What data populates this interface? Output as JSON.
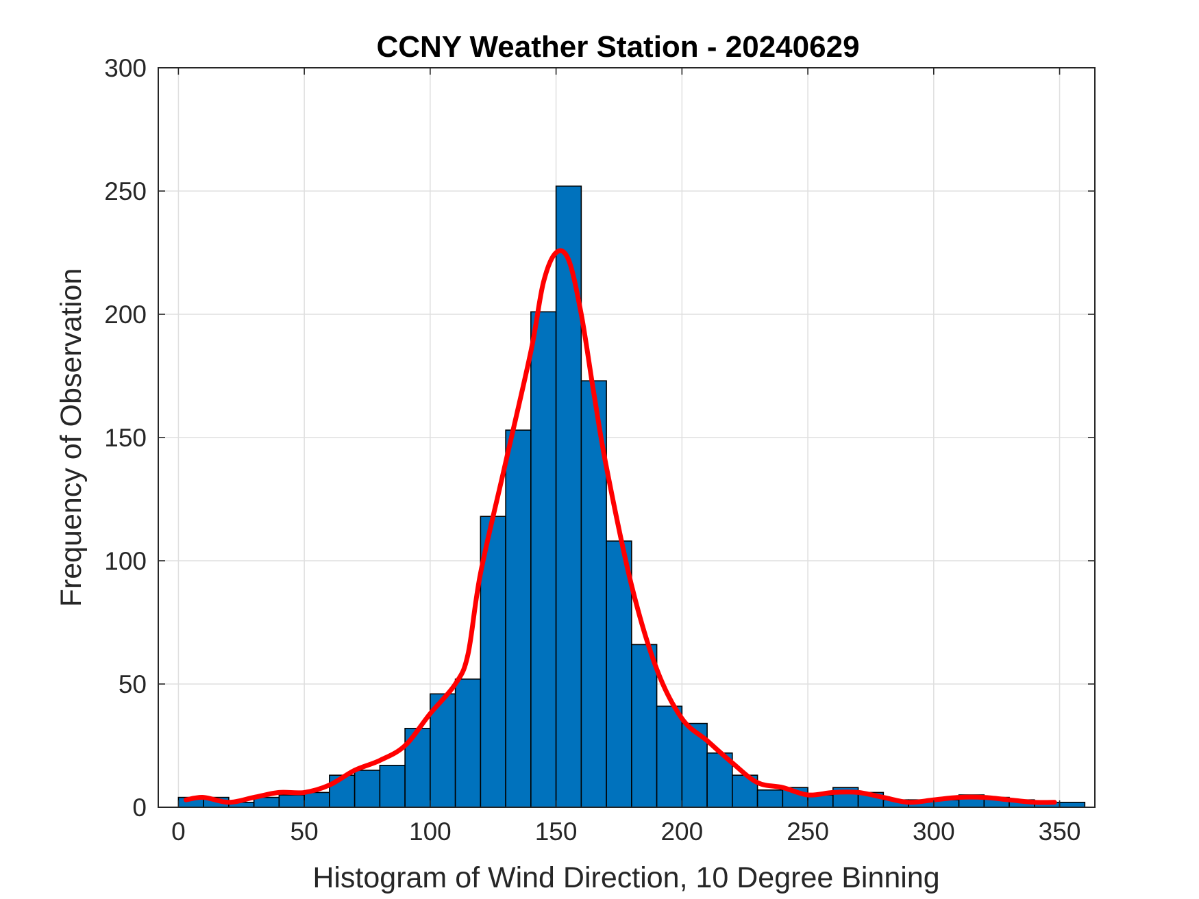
{
  "chart_data": {
    "type": "bar",
    "subtype": "histogram",
    "title": "CCNY Weather Station - 20240629",
    "xlabel": "Histogram of Wind Direction, 10 Degree Binning",
    "ylabel": "Frequency of Observation",
    "xlim": [
      -8,
      364
    ],
    "ylim": [
      0,
      300
    ],
    "x_ticks": [
      0,
      50,
      100,
      150,
      200,
      250,
      300,
      350
    ],
    "y_ticks": [
      0,
      50,
      100,
      150,
      200,
      250,
      300
    ],
    "grid": true,
    "legend": "none",
    "bin_edges": [
      0,
      10,
      20,
      30,
      40,
      50,
      60,
      70,
      80,
      90,
      100,
      110,
      120,
      130,
      140,
      150,
      160,
      170,
      180,
      190,
      200,
      210,
      220,
      230,
      240,
      250,
      260,
      270,
      280,
      290,
      300,
      310,
      320,
      330,
      340,
      350,
      360
    ],
    "series": [
      {
        "type": "bar",
        "values": [
          4,
          4,
          2,
          4,
          5,
          6,
          13,
          15,
          17,
          32,
          46,
          52,
          118,
          153,
          201,
          252,
          173,
          108,
          66,
          41,
          34,
          22,
          13,
          7,
          8,
          5,
          8,
          6,
          3,
          3,
          3,
          5,
          4,
          3,
          2,
          2
        ],
        "color": "#0072bd"
      },
      {
        "type": "line",
        "x": [
          3,
          10,
          20,
          30,
          40,
          50,
          60,
          70,
          80,
          90,
          100,
          110,
          115,
          120,
          130,
          140,
          145,
          150,
          155,
          160,
          165,
          170,
          180,
          190,
          200,
          210,
          220,
          230,
          240,
          250,
          260,
          270,
          280,
          290,
          300,
          310,
          320,
          330,
          340,
          348
        ],
        "y": [
          3,
          4,
          2,
          4,
          6,
          6,
          9,
          15,
          19,
          25,
          38,
          50,
          62,
          95,
          140,
          185,
          213,
          225,
          222,
          200,
          168,
          138,
          90,
          56,
          36,
          27,
          18,
          10,
          8,
          5,
          6,
          6,
          4,
          2,
          3,
          4,
          4,
          3,
          2,
          2
        ],
        "color": "#ff0000"
      }
    ]
  }
}
